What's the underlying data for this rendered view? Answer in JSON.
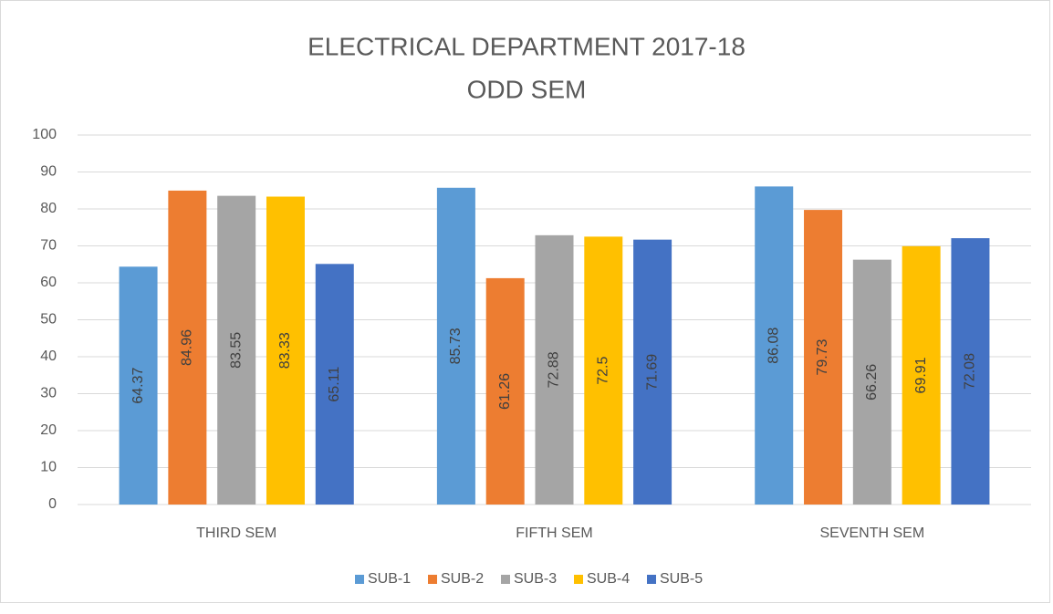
{
  "chart_data": {
    "type": "bar",
    "title": [
      "ELECTRICAL DEPARTMENT 2017-18",
      "ODD SEM"
    ],
    "categories": [
      "THIRD SEM",
      "FIFTH SEM",
      "SEVENTH SEM"
    ],
    "series": [
      {
        "name": "SUB-1",
        "color": "#5b9bd5",
        "values": [
          64.37,
          85.73,
          86.08
        ]
      },
      {
        "name": "SUB-2",
        "color": "#ed7d31",
        "values": [
          84.96,
          61.26,
          79.73
        ]
      },
      {
        "name": "SUB-3",
        "color": "#a5a5a5",
        "values": [
          83.55,
          72.88,
          66.26
        ]
      },
      {
        "name": "SUB-4",
        "color": "#ffc000",
        "values": [
          83.33,
          72.5,
          69.91
        ]
      },
      {
        "name": "SUB-5",
        "color": "#4472c4",
        "values": [
          65.11,
          71.69,
          72.08
        ]
      }
    ],
    "ylim": [
      0,
      100
    ],
    "yticks": [
      0,
      10,
      20,
      30,
      40,
      50,
      60,
      70,
      80,
      90,
      100
    ],
    "grid": true,
    "legend": "bottom"
  }
}
